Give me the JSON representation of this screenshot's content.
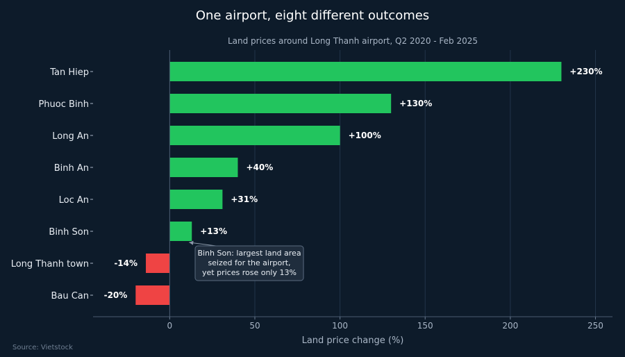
{
  "chart_data": {
    "type": "bar",
    "orientation": "horizontal",
    "title": "One airport, eight different outcomes",
    "subtitle": "Land prices around Long Thanh airport, Q2 2020 - Feb 2025",
    "xlabel": "Land price change (%)",
    "categories": [
      "Tan Hiep",
      "Phuoc Binh",
      "Long An",
      "Binh An",
      "Loc An",
      "Binh Son",
      "Long Thanh town",
      "Bau Can"
    ],
    "values": [
      230,
      130,
      100,
      40,
      31,
      13,
      -14,
      -20
    ],
    "value_labels": [
      "+230%",
      "+130%",
      "+100%",
      "+40%",
      "+31%",
      "+13%",
      "-14%",
      "-20%"
    ],
    "xlim": [
      -45,
      260
    ],
    "xticks": [
      0,
      50,
      100,
      150,
      200,
      250
    ],
    "grid": "vertical",
    "colors": {
      "positive": "#22c55e",
      "negative": "#ef4444",
      "background": "#0d1b2a",
      "grid": "#22344a"
    },
    "annotation": {
      "target": "Binh Son",
      "lines": [
        "Binh Son: largest land area",
        "seized for the airport,",
        "yet prices rose only 13%"
      ]
    },
    "source": "Source: Vietstock"
  }
}
